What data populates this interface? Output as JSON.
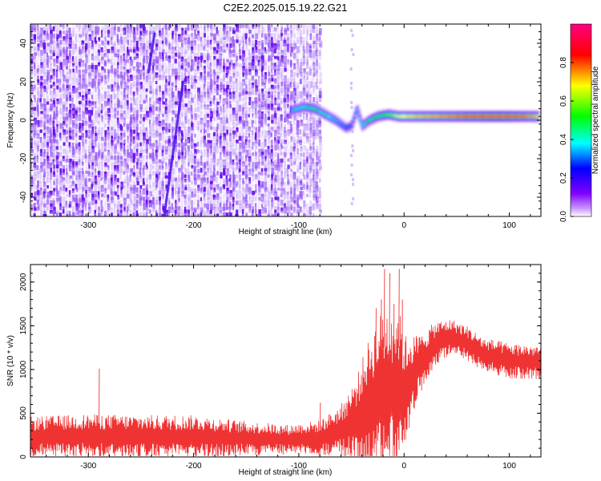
{
  "title": "C2E2.2025.015.19.22.G21",
  "chart_data": [
    {
      "type": "heatmap",
      "xlabel": "Height of straight line (km)",
      "ylabel": "Frequency (Hz)",
      "xlim": [
        -355,
        130
      ],
      "ylim": [
        -50,
        50
      ],
      "xticks": [
        -300,
        -200,
        -100,
        0,
        100
      ],
      "yticks": [
        -40,
        -20,
        0,
        20,
        40
      ],
      "colorbar": {
        "label": "Normalized spectral amplitude",
        "range": [
          0,
          1
        ],
        "ticks": [
          "0.0",
          "0.2",
          "0.4",
          "0.6",
          "0.8"
        ],
        "colors": [
          "#ffffff",
          "#7f00ff",
          "#0000ff",
          "#00ffff",
          "#00ff00",
          "#ffff00",
          "#ff0000",
          "#ff0080"
        ]
      },
      "dominant_signal": [
        {
          "x": -107,
          "y": 5,
          "z": 0.4
        },
        {
          "x": -95,
          "y": 7,
          "z": 0.45
        },
        {
          "x": -85,
          "y": 6,
          "z": 0.5
        },
        {
          "x": -75,
          "y": 3,
          "z": 0.45
        },
        {
          "x": -65,
          "y": 0,
          "z": 0.4
        },
        {
          "x": -55,
          "y": -4,
          "z": 0.35
        },
        {
          "x": -50,
          "y": -3,
          "z": 0.35
        },
        {
          "x": -45,
          "y": 6,
          "z": 0.4
        },
        {
          "x": -40,
          "y": -3,
          "z": 0.45
        },
        {
          "x": -33,
          "y": 0,
          "z": 0.5
        },
        {
          "x": -25,
          "y": 2,
          "z": 0.55
        },
        {
          "x": -15,
          "y": 3,
          "z": 0.6
        },
        {
          "x": -5,
          "y": 2,
          "z": 0.7
        },
        {
          "x": 10,
          "y": 2,
          "z": 0.75
        },
        {
          "x": 30,
          "y": 2,
          "z": 0.78
        },
        {
          "x": 50,
          "y": 2,
          "z": 0.82
        },
        {
          "x": 70,
          "y": 2,
          "z": 0.9
        },
        {
          "x": 90,
          "y": 2,
          "z": 0.95
        },
        {
          "x": 110,
          "y": 2,
          "z": 0.85
        },
        {
          "x": 128,
          "y": 2,
          "z": 0.75
        }
      ],
      "noise_region_x": [
        -355,
        -80
      ],
      "noise_amplitude": 0.1,
      "noise_streaks": [
        {
          "x_top": -237,
          "x_bottom": -243,
          "y_top": 45,
          "y_bottom": 25
        },
        {
          "x_top": -210,
          "x_bottom": -228,
          "y_top": 20,
          "y_bottom": -50
        }
      ]
    },
    {
      "type": "line",
      "xlabel": "Height of straight line (km)",
      "ylabel": "SNR (10 * v/v)",
      "xlim": [
        -355,
        130
      ],
      "ylim": [
        0,
        2200
      ],
      "xticks": [
        -300,
        -200,
        -100,
        0,
        100
      ],
      "yticks": [
        0,
        500,
        1000,
        1500,
        2000
      ],
      "color": "#ef3333",
      "envelope": [
        {
          "x": -355,
          "mid": 230,
          "amp": 230
        },
        {
          "x": -300,
          "mid": 240,
          "amp": 250
        },
        {
          "x": -250,
          "mid": 230,
          "amp": 250
        },
        {
          "x": -200,
          "mid": 230,
          "amp": 250
        },
        {
          "x": -150,
          "mid": 210,
          "amp": 200
        },
        {
          "x": -110,
          "mid": 200,
          "amp": 170
        },
        {
          "x": -80,
          "mid": 220,
          "amp": 200
        },
        {
          "x": -60,
          "mid": 300,
          "amp": 300
        },
        {
          "x": -45,
          "mid": 420,
          "amp": 500
        },
        {
          "x": -35,
          "mid": 600,
          "amp": 700
        },
        {
          "x": -25,
          "mid": 700,
          "amp": 900
        },
        {
          "x": -15,
          "mid": 760,
          "amp": 1000
        },
        {
          "x": -5,
          "mid": 800,
          "amp": 900
        },
        {
          "x": 0,
          "mid": 700,
          "amp": 700
        },
        {
          "x": 5,
          "mid": 850,
          "amp": 550
        },
        {
          "x": 15,
          "mid": 1050,
          "amp": 350
        },
        {
          "x": 30,
          "mid": 1300,
          "amp": 250
        },
        {
          "x": 45,
          "mid": 1380,
          "amp": 200
        },
        {
          "x": 60,
          "mid": 1300,
          "amp": 200
        },
        {
          "x": 75,
          "mid": 1170,
          "amp": 200
        },
        {
          "x": 100,
          "mid": 1100,
          "amp": 200
        },
        {
          "x": 130,
          "mid": 1080,
          "amp": 200
        }
      ],
      "spikes": [
        {
          "x": -27,
          "y": 1700
        },
        {
          "x": -22,
          "y": 1800
        },
        {
          "x": -19,
          "y": 2150
        },
        {
          "x": -14,
          "y": 2100
        },
        {
          "x": -10,
          "y": 1750
        },
        {
          "x": -5,
          "y": 2150
        },
        {
          "x": -2,
          "y": 1800
        },
        {
          "x": -290,
          "y": 1010
        },
        {
          "x": -80,
          "y": 620
        }
      ]
    }
  ]
}
